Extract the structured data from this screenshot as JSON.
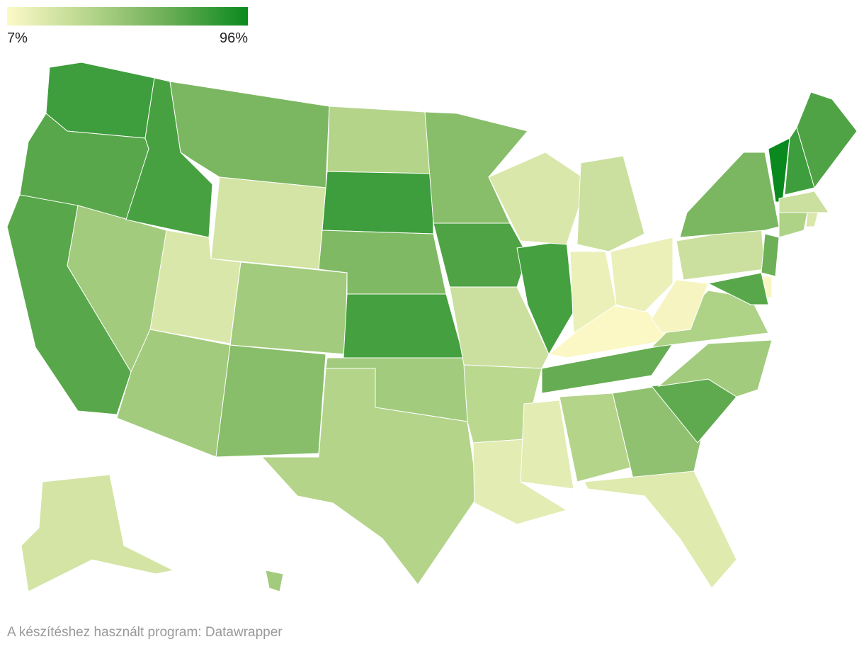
{
  "legend": {
    "min": {
      "value": 7,
      "label": "7%"
    },
    "max": {
      "value": 96,
      "label": "96%"
    },
    "colors": [
      "#fdf9c8",
      "#b7d68c",
      "#6bae55",
      "#0a8a1e"
    ]
  },
  "map": {
    "values": [
      80,
      72,
      72,
      45,
      77,
      60,
      25,
      22,
      45,
      45,
      55,
      38,
      80,
      58,
      78,
      45,
      38,
      55,
      75,
      28,
      35,
      18,
      18,
      38,
      68,
      8,
      78,
      15,
      15,
      22,
      28,
      52,
      20,
      70,
      45,
      40,
      10,
      28,
      60,
      96,
      80,
      75,
      28,
      40,
      22,
      65,
      9,
      72,
      25,
      45
    ]
  },
  "footer": "A készítéshez használt program: Datawrapper"
}
